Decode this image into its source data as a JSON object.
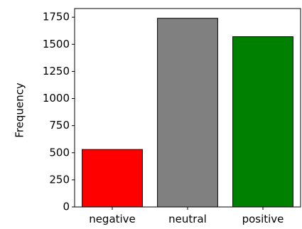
{
  "chart_data": {
    "type": "bar",
    "categories": [
      "negative",
      "neutral",
      "positive"
    ],
    "values": [
      530,
      1740,
      1570
    ],
    "colors": [
      "#ff0000",
      "#808080",
      "#008000"
    ],
    "title": "",
    "xlabel": "",
    "ylabel": "Frequency",
    "ylim": [
      0,
      1830
    ],
    "yticks": [
      0,
      250,
      500,
      750,
      1000,
      1250,
      1500,
      1750
    ],
    "ytick_labels": [
      "0",
      "250",
      "500",
      "750",
      "1000",
      "1250",
      "1500",
      "1750"
    ],
    "grid": false,
    "legend": "none"
  }
}
